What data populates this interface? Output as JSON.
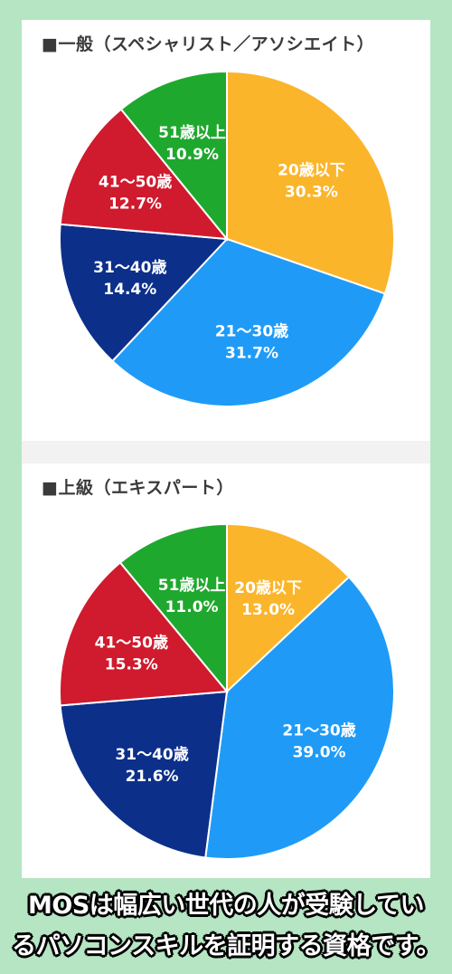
{
  "chart_data": [
    {
      "type": "pie",
      "title": "■一般（スペシャリスト／アソシエイト）",
      "slices": [
        {
          "label": "20歳以下",
          "value": 30.3,
          "display": "30.3%",
          "color": "#fbb52b"
        },
        {
          "label": "21〜30歳",
          "value": 31.7,
          "display": "31.7%",
          "color": "#1f9bf7"
        },
        {
          "label": "31〜40歳",
          "value": 14.4,
          "display": "14.4%",
          "color": "#0c2f8a"
        },
        {
          "label": "41〜50歳",
          "value": 12.7,
          "display": "12.7%",
          "color": "#d01a2e"
        },
        {
          "label": "51歳以上",
          "value": 10.9,
          "display": "10.9%",
          "color": "#1fa82e"
        }
      ]
    },
    {
      "type": "pie",
      "title": "■上級（エキスパート）",
      "slices": [
        {
          "label": "20歳以下",
          "value": 13.0,
          "display": "13.0%",
          "color": "#fbb52b"
        },
        {
          "label": "21〜30歳",
          "value": 39.0,
          "display": "39.0%",
          "color": "#1f9bf7"
        },
        {
          "label": "31〜40歳",
          "value": 21.6,
          "display": "21.6%",
          "color": "#0c2f8a"
        },
        {
          "label": "41〜50歳",
          "value": 15.3,
          "display": "15.3%",
          "color": "#d01a2e"
        },
        {
          "label": "51歳以上",
          "value": 11.0,
          "display": "11.0%",
          "color": "#1fa82e"
        }
      ]
    }
  ],
  "caption": {
    "line1": "MOSは幅広い世代の人が受験してい",
    "line2": "るパソコンスキルを証明する資格です。"
  }
}
